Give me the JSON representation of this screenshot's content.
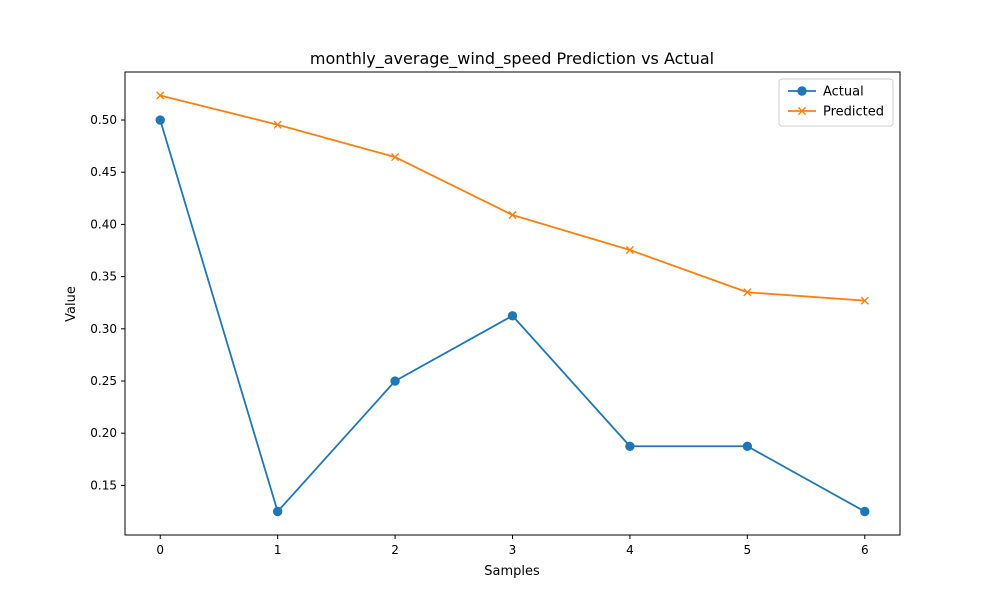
{
  "chart_data": {
    "type": "line",
    "title": "monthly_average_wind_speed Prediction vs Actual",
    "xlabel": "Samples",
    "ylabel": "Value",
    "x": [
      0,
      1,
      2,
      3,
      4,
      5,
      6
    ],
    "xlim": [
      -0.3,
      6.3
    ],
    "ylim": [
      0.1025,
      0.546
    ],
    "xticks": [
      0,
      1,
      2,
      3,
      4,
      5,
      6
    ],
    "yticks": [
      0.15,
      0.2,
      0.25,
      0.3,
      0.35,
      0.4,
      0.45,
      0.5
    ],
    "grid": false,
    "legend": "top-right",
    "series": [
      {
        "name": "Actual",
        "color": "#1f77b4",
        "marker": "circle",
        "values": [
          0.5,
          0.125,
          0.25,
          0.3125,
          0.1875,
          0.1875,
          0.125
        ]
      },
      {
        "name": "Predicted",
        "color": "#ff7f0e",
        "marker": "x",
        "values": [
          0.5235,
          0.4955,
          0.4645,
          0.409,
          0.3755,
          0.335,
          0.327
        ]
      }
    ]
  }
}
